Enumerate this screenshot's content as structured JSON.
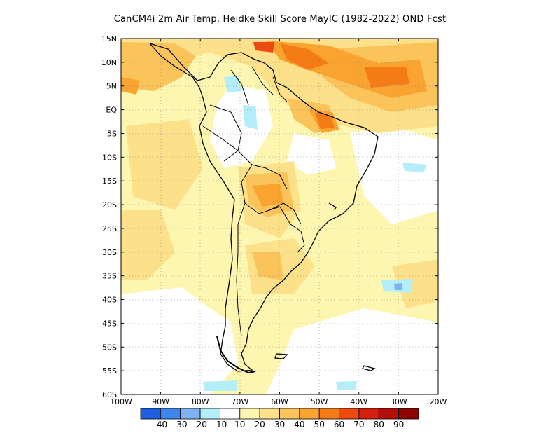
{
  "title": "CanCM4i  2m Air Temp. Heidke Skill Score MayIC (1982-2022) OND Fcst",
  "axes": {
    "lat_labels": [
      "15N",
      "10N",
      "5N",
      "EQ",
      "5S",
      "10S",
      "15S",
      "20S",
      "25S",
      "30S",
      "35S",
      "40S",
      "45S",
      "50S",
      "55S",
      "60S"
    ],
    "lon_labels": [
      "100W",
      "90W",
      "80W",
      "70W",
      "60W",
      "50W",
      "40W",
      "30W",
      "20W"
    ]
  },
  "colorbar": {
    "labels": [
      "-40",
      "-30",
      "-20",
      "-10",
      "10",
      "20",
      "30",
      "40",
      "50",
      "60",
      "70",
      "80",
      "90"
    ],
    "colors": [
      "#1f5fe0",
      "#3d86ec",
      "#7fb2f0",
      "#b3eefa",
      "#ffffff",
      "#fdf6b0",
      "#fde08a",
      "#fbc45a",
      "#f9a331",
      "#f57b16",
      "#ec4a10",
      "#d52010",
      "#b40e0a",
      "#8e0404"
    ]
  },
  "chart_data": {
    "type": "heatmap",
    "title": "CanCM4i  2m Air Temp. Heidke Skill Score MayIC (1982-2022) OND Fcst",
    "x_range": [
      "100W",
      "20W"
    ],
    "y_range": [
      "60S",
      "15N"
    ],
    "grid": true,
    "colorbar_levels": [
      -40,
      -30,
      -20,
      -10,
      10,
      20,
      30,
      40,
      50,
      60,
      70,
      80,
      90
    ]
  }
}
